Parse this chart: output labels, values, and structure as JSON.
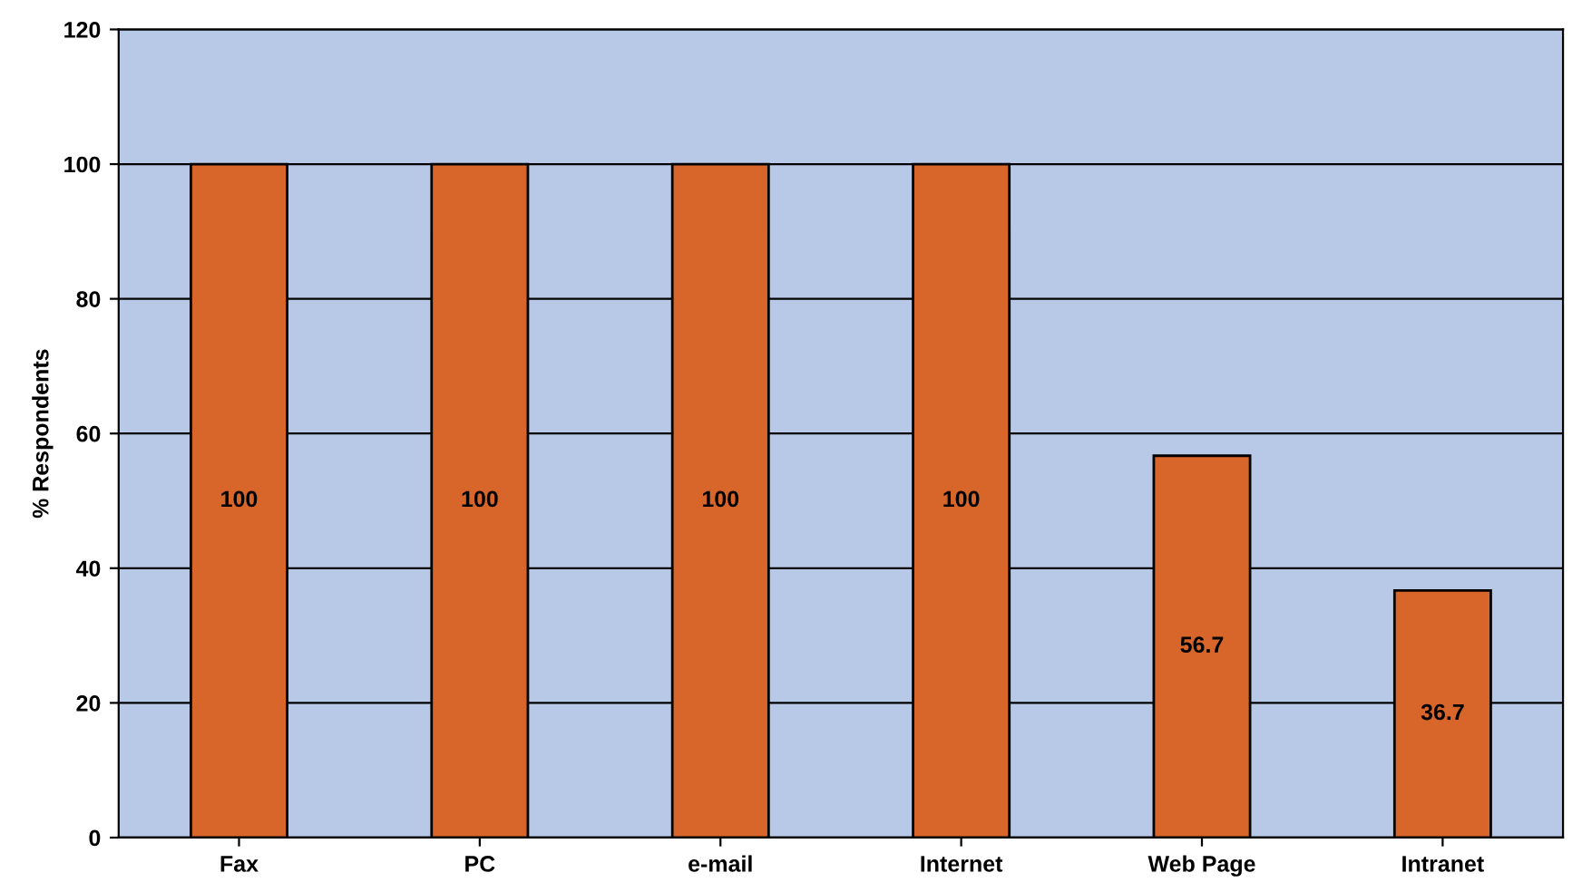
{
  "chart_data": {
    "type": "bar",
    "ylabel": "% Respondents",
    "categories": [
      "Fax",
      "PC",
      "e-mail",
      "Internet",
      "Web Page",
      "Intranet"
    ],
    "values": [
      100,
      100,
      100,
      100,
      56.7,
      36.7
    ],
    "color": "#d8662a",
    "ylim": [
      0,
      120
    ],
    "yticks": [
      0,
      20,
      40,
      60,
      80,
      100,
      120
    ],
    "grid": "y",
    "data_labels": true
  }
}
